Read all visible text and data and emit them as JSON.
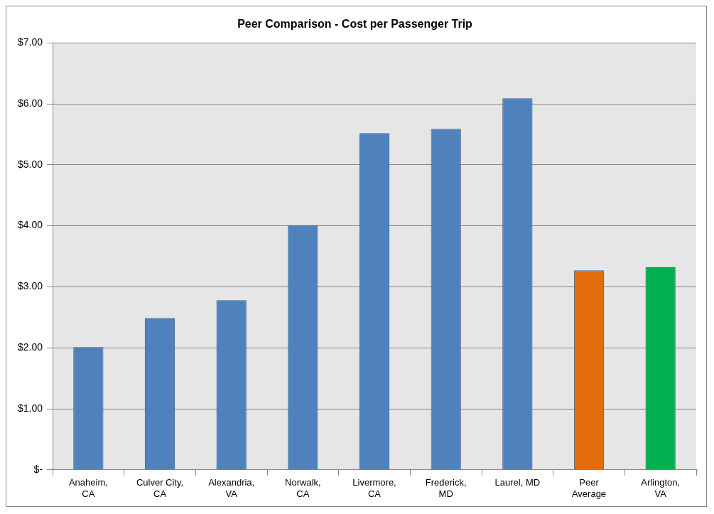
{
  "chart_data": {
    "type": "bar",
    "title": "Peer Comparison - Cost per Passenger Trip",
    "categories": [
      "Anaheim, CA",
      "Culver City, CA",
      "Alexandria, VA",
      "Norwalk, CA",
      "Livermore, CA",
      "Frederick, MD",
      "Laurel, MD",
      "Peer Average",
      "Arlington, VA"
    ],
    "values": [
      2.01,
      2.49,
      2.78,
      4.01,
      5.52,
      5.59,
      6.09,
      3.27,
      3.32
    ],
    "colors": [
      "#4f81bd",
      "#4f81bd",
      "#4f81bd",
      "#4f81bd",
      "#4f81bd",
      "#4f81bd",
      "#4f81bd",
      "#e36c0a",
      "#00b050"
    ],
    "ylim": [
      0,
      7
    ],
    "yticks": [
      {
        "value": 0,
        "label": "$-"
      },
      {
        "value": 1,
        "label": "$1.00"
      },
      {
        "value": 2,
        "label": "$2.00"
      },
      {
        "value": 3,
        "label": "$3.00"
      },
      {
        "value": 4,
        "label": "$4.00"
      },
      {
        "value": 5,
        "label": "$5.00"
      },
      {
        "value": 6,
        "label": "$6.00"
      },
      {
        "value": 7,
        "label": "$7.00"
      }
    ],
    "grid": "y",
    "legend": false
  }
}
